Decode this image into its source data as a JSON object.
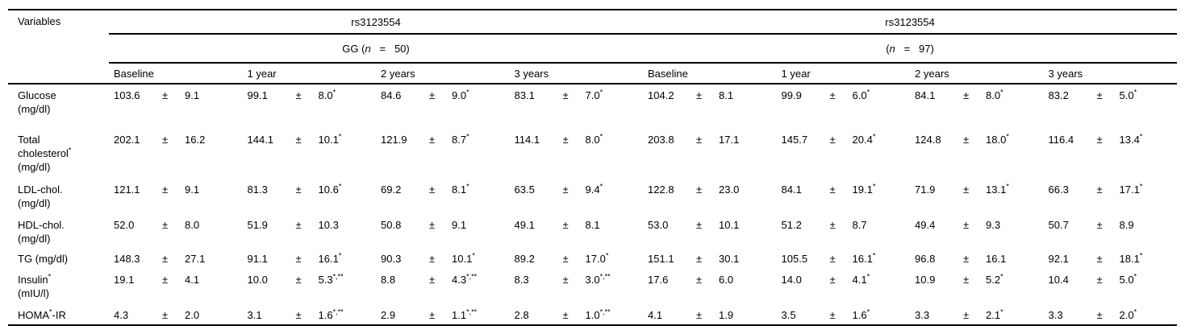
{
  "page": {
    "background": "#ffffff",
    "text_color": "#000000",
    "rule_color": "#000000"
  },
  "table": {
    "corner_header": "Variables",
    "plus_minus": "±",
    "group_headers": [
      {
        "title": "rs3123554",
        "subtitle_segments": [
          {
            "t": "GG ("
          },
          {
            "t": "n",
            "i": true
          },
          {
            "t": "   =   ",
            "pre": true
          },
          {
            "t": "50)"
          }
        ]
      },
      {
        "title": "rs3123554",
        "subtitle_segments": [
          {
            "t": "("
          },
          {
            "t": "n",
            "i": true
          },
          {
            "t": "   =   ",
            "pre": true
          },
          {
            "t": "97)"
          }
        ]
      }
    ],
    "time_headers": [
      "Baseline",
      "1 year",
      "2 years",
      "3 years",
      "Baseline",
      "1 year",
      "2 years",
      "3 years"
    ],
    "rows": [
      {
        "variable_lines": [
          [
            {
              "t": "Glucose"
            }
          ],
          [
            {
              "t": "(mg/dl)"
            }
          ]
        ],
        "cells": [
          {
            "m": "103.6",
            "s": "9.1",
            "sup": ""
          },
          {
            "m": "99.1",
            "s": "8.0",
            "sup": "*"
          },
          {
            "m": "84.6",
            "s": "9.0",
            "sup": "*"
          },
          {
            "m": "83.1",
            "s": "7.0",
            "sup": "*"
          },
          {
            "m": "104.2",
            "s": "8.1",
            "sup": ""
          },
          {
            "m": "99.9",
            "s": "6.0",
            "sup": "*"
          },
          {
            "m": "84.1",
            "s": "8.0",
            "sup": "*"
          },
          {
            "m": "83.2",
            "s": "5.0",
            "sup": "*"
          }
        ]
      },
      {
        "variable_lines": [
          [
            {
              "t": "Total"
            }
          ],
          [
            {
              "t": "cholesterol"
            },
            {
              "t": "*",
              "sup": true
            }
          ],
          [
            {
              "t": "(mg/dl)"
            }
          ]
        ],
        "cells": [
          {
            "m": "202.1",
            "s": "16.2",
            "sup": ""
          },
          {
            "m": "144.1",
            "s": "10.1",
            "sup": "*"
          },
          {
            "m": "121.9",
            "s": "8.7",
            "sup": "*"
          },
          {
            "m": "114.1",
            "s": "8.0",
            "sup": "*"
          },
          {
            "m": "203.8",
            "s": "17.1",
            "sup": ""
          },
          {
            "m": "145.7",
            "s": "20.4",
            "sup": "*"
          },
          {
            "m": "124.8",
            "s": "18.0",
            "sup": "*"
          },
          {
            "m": "116.4",
            "s": "13.4",
            "sup": "*"
          }
        ]
      },
      {
        "variable_lines": [
          [
            {
              "t": "LDL-chol."
            }
          ],
          [
            {
              "t": "(mg/dl)"
            }
          ]
        ],
        "cells": [
          {
            "m": "121.1",
            "s": "9.1",
            "sup": ""
          },
          {
            "m": "81.3",
            "s": "10.6",
            "sup": "*"
          },
          {
            "m": "69.2",
            "s": "8.1",
            "sup": "*"
          },
          {
            "m": "63.5",
            "s": "9.4",
            "sup": "*"
          },
          {
            "m": "122.8",
            "s": "23.0",
            "sup": ""
          },
          {
            "m": "84.1",
            "s": "19.1",
            "sup": "*"
          },
          {
            "m": "71.9",
            "s": "13.1",
            "sup": "*"
          },
          {
            "m": "66.3",
            "s": "17.1",
            "sup": "*"
          }
        ]
      },
      {
        "variable_lines": [
          [
            {
              "t": "HDL-chol."
            }
          ],
          [
            {
              "t": "(mg/dl)"
            }
          ]
        ],
        "cells": [
          {
            "m": "52.0",
            "s": "8.0",
            "sup": ""
          },
          {
            "m": "51.9",
            "s": "10.3",
            "sup": ""
          },
          {
            "m": "50.8",
            "s": "9.1",
            "sup": ""
          },
          {
            "m": "49.1",
            "s": "8.1",
            "sup": ""
          },
          {
            "m": "53.0",
            "s": "10.1",
            "sup": ""
          },
          {
            "m": "51.2",
            "s": "8.7",
            "sup": ""
          },
          {
            "m": "49.4",
            "s": "9.3",
            "sup": ""
          },
          {
            "m": "50.7",
            "s": "8.9",
            "sup": ""
          }
        ]
      },
      {
        "variable_lines": [
          [
            {
              "t": "TG (mg/dl)"
            }
          ]
        ],
        "cells": [
          {
            "m": "148.3",
            "s": "27.1",
            "sup": ""
          },
          {
            "m": "91.1",
            "s": "16.1",
            "sup": "*"
          },
          {
            "m": "90.3",
            "s": "10.1",
            "sup": "*"
          },
          {
            "m": "89.2",
            "s": "17.0",
            "sup": "*"
          },
          {
            "m": "151.1",
            "s": "30.1",
            "sup": ""
          },
          {
            "m": "105.5",
            "s": "16.1",
            "sup": "*"
          },
          {
            "m": "96.8",
            "s": "16.1",
            "sup": ""
          },
          {
            "m": "92.1",
            "s": "18.1",
            "sup": "*"
          }
        ]
      },
      {
        "variable_lines": [
          [
            {
              "t": "Insulin"
            },
            {
              "t": "*",
              "sup": true
            }
          ],
          [
            {
              "t": "(mIU/l)"
            }
          ]
        ],
        "cells": [
          {
            "m": "19.1",
            "s": "4.1",
            "sup": ""
          },
          {
            "m": "10.0",
            "s": "5.3",
            "sup": "*,**"
          },
          {
            "m": "8.8",
            "s": "4.3",
            "sup": "*,**"
          },
          {
            "m": "8.3",
            "s": "3.0",
            "sup": "*,**"
          },
          {
            "m": "17.6",
            "s": "6.0",
            "sup": ""
          },
          {
            "m": "14.0",
            "s": "4.1",
            "sup": "*"
          },
          {
            "m": "10.9",
            "s": "5.2",
            "sup": "*"
          },
          {
            "m": "10.4",
            "s": "5.0",
            "sup": "*"
          }
        ]
      },
      {
        "variable_lines": [
          [
            {
              "t": "HOMA"
            },
            {
              "t": "*",
              "sup": true
            },
            {
              "t": "-IR"
            }
          ]
        ],
        "cells": [
          {
            "m": "4.3",
            "s": "2.0",
            "sup": ""
          },
          {
            "m": "3.1",
            "s": "1.6",
            "sup": "*,**"
          },
          {
            "m": "2.9",
            "s": "1.1",
            "sup": "*,**"
          },
          {
            "m": "2.8",
            "s": "1.0",
            "sup": "*,**"
          },
          {
            "m": "4.1",
            "s": "1.9",
            "sup": ""
          },
          {
            "m": "3.5",
            "s": "1.6",
            "sup": "*"
          },
          {
            "m": "3.3",
            "s": "2.1",
            "sup": "*"
          },
          {
            "m": "3.3",
            "s": "2.0",
            "sup": "*"
          }
        ]
      }
    ]
  }
}
